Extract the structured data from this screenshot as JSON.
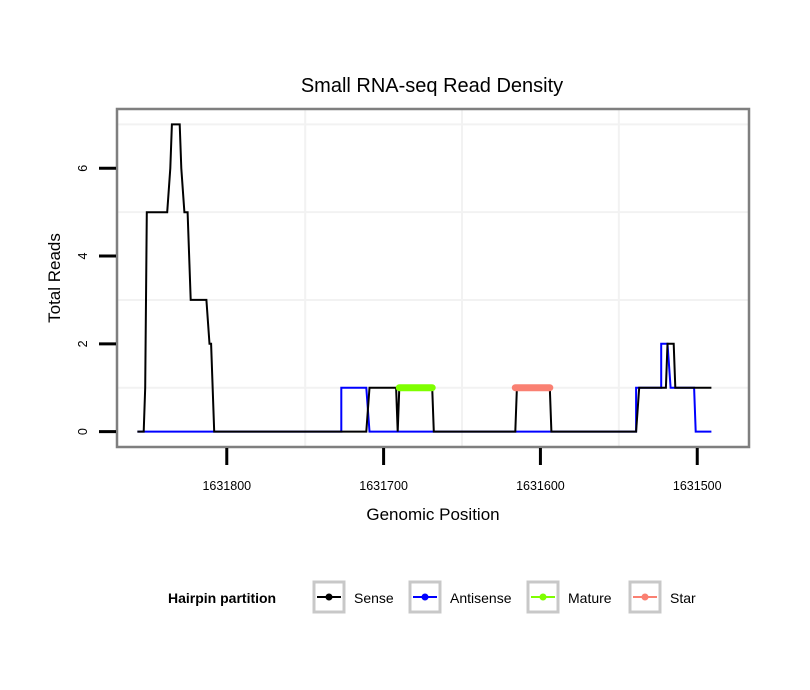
{
  "chart_data": {
    "type": "line",
    "title": "Small RNA-seq Read Density",
    "xlabel": "Genomic Position",
    "ylabel": "Total Reads",
    "x_reversed": true,
    "xlim": [
      1631870,
      1631467
    ],
    "ylim": [
      -0.35,
      7.35
    ],
    "x_ticks": [
      1631800,
      1631700,
      1631600,
      1631500
    ],
    "x_tick_labels": [
      "1631800",
      "1631700",
      "1631600",
      "1631500"
    ],
    "y_ticks": [
      0,
      2,
      4,
      6
    ],
    "y_tick_labels": [
      "0",
      "2",
      "4",
      "6"
    ],
    "x_minor_grid": [
      1631750,
      1631650,
      1631550
    ],
    "y_minor_grid": [
      1,
      3,
      5,
      7
    ],
    "grid": true,
    "legend": {
      "title": "Hairpin partition",
      "position": "bottom",
      "entries": [
        "Sense",
        "Antisense",
        "Mature",
        "Star"
      ]
    },
    "series": [
      {
        "name": "Antisense",
        "color": "#0000ff",
        "kind": "step-line",
        "points": [
          [
            1631857,
            0
          ],
          [
            1631727,
            0
          ],
          [
            1631727,
            1
          ],
          [
            1631711,
            1
          ],
          [
            1631709,
            0
          ],
          [
            1631539,
            0
          ],
          [
            1631539,
            1
          ],
          [
            1631523,
            1
          ],
          [
            1631523,
            2
          ],
          [
            1631519,
            2
          ],
          [
            1631517,
            1
          ],
          [
            1631502,
            1
          ],
          [
            1631501,
            0
          ],
          [
            1631491,
            0
          ]
        ]
      },
      {
        "name": "Sense",
        "color": "#000000",
        "kind": "step-line",
        "points": [
          [
            1631857,
            0
          ],
          [
            1631853,
            0
          ],
          [
            1631852,
            1
          ],
          [
            1631851,
            5
          ],
          [
            1631838,
            5
          ],
          [
            1631836,
            6
          ],
          [
            1631835,
            7
          ],
          [
            1631830,
            7
          ],
          [
            1631829,
            6
          ],
          [
            1631827,
            5
          ],
          [
            1631825,
            5
          ],
          [
            1631823,
            3
          ],
          [
            1631813,
            3
          ],
          [
            1631811,
            2
          ],
          [
            1631810,
            2
          ],
          [
            1631808,
            0
          ],
          [
            1631711,
            0
          ],
          [
            1631709,
            1
          ],
          [
            1631692,
            1
          ],
          [
            1631691,
            0
          ],
          [
            1631690,
            1
          ],
          [
            1631669,
            1
          ],
          [
            1631668,
            0
          ],
          [
            1631616,
            0
          ],
          [
            1631615,
            1
          ],
          [
            1631594,
            1
          ],
          [
            1631593,
            0
          ],
          [
            1631539,
            0
          ],
          [
            1631537,
            1
          ],
          [
            1631520,
            1
          ],
          [
            1631519,
            2
          ],
          [
            1631515,
            2
          ],
          [
            1631514,
            1
          ],
          [
            1631491,
            1
          ]
        ]
      },
      {
        "name": "Mature",
        "color": "#7fff00",
        "kind": "segment",
        "points": [
          [
            1631690,
            1
          ],
          [
            1631669,
            1
          ]
        ]
      },
      {
        "name": "Star",
        "color": "#fa8072",
        "kind": "segment",
        "points": [
          [
            1631616,
            1
          ],
          [
            1631594,
            1
          ]
        ]
      }
    ]
  }
}
